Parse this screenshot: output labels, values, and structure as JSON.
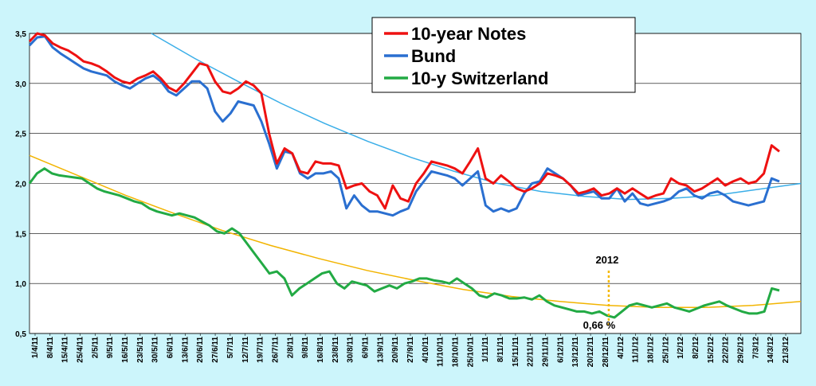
{
  "chart_data": {
    "type": "line",
    "ylim": [
      0.5,
      3.5
    ],
    "y_ticks": [
      "0,5",
      "1,0",
      "1,5",
      "2,0",
      "2,5",
      "3,0",
      "3,5"
    ],
    "x_ticks": [
      "1/4/11",
      "8/4/11",
      "15/4/11",
      "25/4/11",
      "2/5/11",
      "9/5/11",
      "16/5/11",
      "23/5/11",
      "30/5/11",
      "6/6/11",
      "13/6/11",
      "20/6/11",
      "27/6/11",
      "5/7/11",
      "12/7/11",
      "19/7/11",
      "26/7/11",
      "2/8/11",
      "9/8/11",
      "16/8/11",
      "23/8/11",
      "30/8/11",
      "6/9/11",
      "13/9/11",
      "20/9/11",
      "27/9/11",
      "4/10/11",
      "11/10/11",
      "18/10/11",
      "25/10/11",
      "1/11/11",
      "8/11/11",
      "15/11/11",
      "22/11/11",
      "29/11/11",
      "6/12/11",
      "13/12/11",
      "20/12/11",
      "28/12/11",
      "4/1/12",
      "11/1/12",
      "18/1/12",
      "25/1/12",
      "1/2/12",
      "8/2/12",
      "15/2/12",
      "22/2/12",
      "29/2/12",
      "7/3/12",
      "14/3/12",
      "21/3/12"
    ],
    "grid": true,
    "legend_position": "top-center",
    "series": [
      {
        "name": "10-year Notes",
        "color": "#ee1111",
        "values": [
          3.42,
          3.5,
          3.48,
          3.4,
          3.36,
          3.33,
          3.28,
          3.22,
          3.2,
          3.17,
          3.12,
          3.06,
          3.02,
          3.0,
          3.05,
          3.08,
          3.12,
          3.05,
          2.96,
          2.92,
          3.0,
          3.1,
          3.2,
          3.18,
          3.02,
          2.92,
          2.9,
          2.95,
          3.02,
          2.98,
          2.9,
          2.5,
          2.2,
          2.35,
          2.3,
          2.12,
          2.1,
          2.22,
          2.2,
          2.2,
          2.18,
          1.95,
          1.98,
          2.0,
          1.92,
          1.88,
          1.75,
          1.98,
          1.85,
          1.82,
          2.0,
          2.1,
          2.22,
          2.2,
          2.18,
          2.15,
          2.1,
          2.22,
          2.35,
          2.05,
          2.0,
          2.08,
          2.02,
          1.95,
          1.92,
          1.95,
          2.0,
          2.1,
          2.08,
          2.05,
          1.98,
          1.9,
          1.92,
          1.95,
          1.88,
          1.9,
          1.95,
          1.9,
          1.95,
          1.9,
          1.85,
          1.88,
          1.9,
          2.05,
          2.0,
          1.98,
          1.92,
          1.95,
          2.0,
          2.05,
          1.98,
          2.02,
          2.05,
          2.0,
          2.02,
          2.1,
          2.38,
          2.32
        ]
      },
      {
        "name": "Bund",
        "color": "#2a6fd0",
        "values": [
          3.38,
          3.46,
          3.47,
          3.36,
          3.3,
          3.25,
          3.2,
          3.15,
          3.12,
          3.1,
          3.08,
          3.02,
          2.98,
          2.95,
          3.0,
          3.05,
          3.08,
          3.02,
          2.92,
          2.88,
          2.95,
          3.02,
          3.02,
          2.95,
          2.72,
          2.62,
          2.7,
          2.82,
          2.8,
          2.78,
          2.62,
          2.4,
          2.15,
          2.32,
          2.3,
          2.1,
          2.05,
          2.1,
          2.1,
          2.12,
          2.05,
          1.75,
          1.88,
          1.78,
          1.72,
          1.72,
          1.7,
          1.68,
          1.72,
          1.75,
          1.92,
          2.02,
          2.12,
          2.1,
          2.08,
          2.05,
          1.98,
          2.05,
          2.12,
          1.78,
          1.72,
          1.75,
          1.72,
          1.75,
          1.9,
          2.0,
          2.02,
          2.15,
          2.1,
          2.05,
          1.98,
          1.88,
          1.9,
          1.92,
          1.85,
          1.85,
          1.95,
          1.82,
          1.9,
          1.8,
          1.78,
          1.8,
          1.82,
          1.85,
          1.92,
          1.95,
          1.88,
          1.85,
          1.9,
          1.92,
          1.88,
          1.82,
          1.8,
          1.78,
          1.8,
          1.82,
          2.05,
          2.02
        ]
      },
      {
        "name": "10-y Switzerland",
        "color": "#22aa44",
        "values": [
          2.0,
          2.1,
          2.15,
          2.1,
          2.08,
          2.07,
          2.06,
          2.05,
          2.0,
          1.95,
          1.92,
          1.9,
          1.88,
          1.85,
          1.82,
          1.8,
          1.75,
          1.72,
          1.7,
          1.68,
          1.7,
          1.68,
          1.66,
          1.62,
          1.58,
          1.52,
          1.5,
          1.55,
          1.5,
          1.4,
          1.3,
          1.2,
          1.1,
          1.12,
          1.05,
          0.88,
          0.95,
          1.0,
          1.05,
          1.1,
          1.12,
          1.0,
          0.95,
          1.02,
          1.0,
          0.98,
          0.92,
          0.95,
          0.98,
          0.95,
          1.0,
          1.02,
          1.05,
          1.05,
          1.03,
          1.02,
          1.0,
          1.05,
          1.0,
          0.95,
          0.88,
          0.86,
          0.9,
          0.88,
          0.85,
          0.85,
          0.86,
          0.84,
          0.88,
          0.82,
          0.78,
          0.76,
          0.74,
          0.72,
          0.72,
          0.7,
          0.72,
          0.68,
          0.66,
          0.72,
          0.78,
          0.8,
          0.78,
          0.76,
          0.78,
          0.8,
          0.76,
          0.74,
          0.72,
          0.75,
          0.78,
          0.8,
          0.82,
          0.78,
          0.75,
          0.72,
          0.7,
          0.7,
          0.72,
          0.95,
          0.93
        ]
      }
    ],
    "trendlines": [
      {
        "color": "#3aaee8",
        "values": [
          3.5,
          3.25,
          3.02,
          2.8,
          2.6,
          2.42,
          2.26,
          2.12,
          2.0,
          1.92,
          1.87,
          1.84,
          1.85,
          1.88,
          1.94,
          2.0
        ]
      },
      {
        "color": "#f2b400",
        "values": [
          2.28,
          2.08,
          1.88,
          1.7,
          1.53,
          1.38,
          1.25,
          1.13,
          1.03,
          0.94,
          0.87,
          0.82,
          0.78,
          0.76,
          0.76,
          0.78,
          0.82
        ]
      }
    ],
    "annotations": [
      {
        "label": "2012",
        "x_tick": "28/12/11"
      },
      {
        "label": "0,66 %",
        "x_tick": "28/12/11",
        "value": 0.66
      }
    ]
  }
}
